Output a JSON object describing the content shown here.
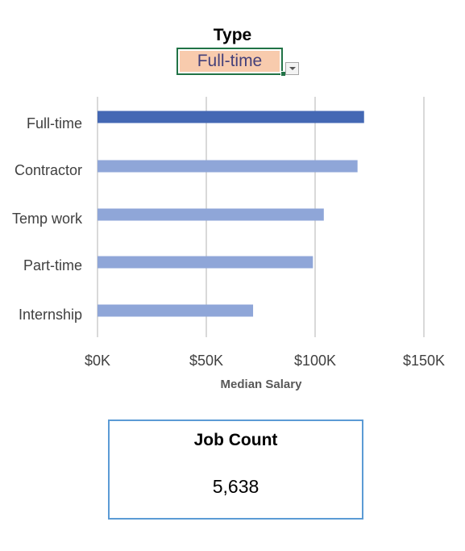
{
  "filter": {
    "title": "Type",
    "selected_value": "Full-time"
  },
  "colors": {
    "highlight_bar": "#4468b4",
    "bar": "#8fa6d8",
    "gridline": "#d9d9d9",
    "filter_fill": "#f8cbad",
    "filter_border": "#217346",
    "card_border": "#5b9bd5"
  },
  "chart_data": {
    "type": "bar",
    "orientation": "horizontal",
    "categories": [
      "Full-time",
      "Contractor",
      "Temp work",
      "Part-time",
      "Internship"
    ],
    "values": [
      122500,
      119500,
      104000,
      99000,
      71500
    ],
    "highlighted_category": "Full-time",
    "xlabel": "Median Salary",
    "xlim": [
      0,
      150000
    ],
    "xticks": [
      0,
      50000,
      100000,
      150000
    ],
    "xtick_labels": [
      "$0K",
      "$50K",
      "$100K",
      "$150K"
    ],
    "grid": true,
    "legend": "none"
  },
  "kpi": {
    "title": "Job Count",
    "value": "5,638"
  }
}
